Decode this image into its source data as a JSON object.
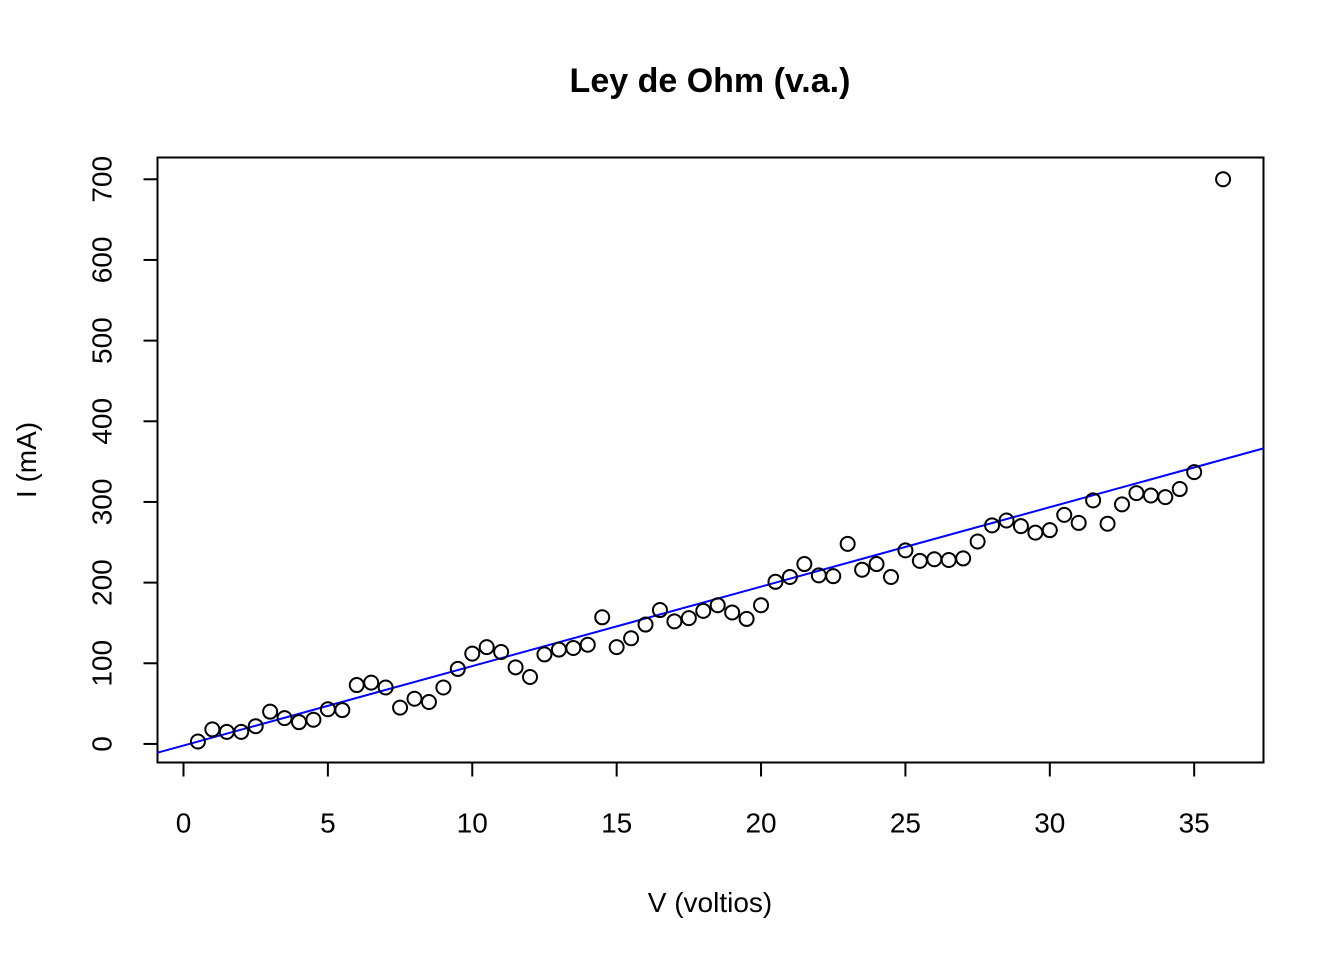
{
  "chart_data": {
    "type": "scatter",
    "title": "Ley de Ohm (v.a.)",
    "xlabel": "V (voltios)",
    "ylabel": "I (mA)",
    "xlim": [
      -0.9,
      37.4
    ],
    "ylim": [
      -23,
      727
    ],
    "xticks": [
      0,
      5,
      10,
      15,
      20,
      25,
      30,
      35
    ],
    "yticks": [
      0,
      100,
      200,
      300,
      400,
      500,
      600,
      700
    ],
    "grid": false,
    "legend": "none",
    "colors": {
      "points": "#000000",
      "fit_line": "#0000ff"
    },
    "series": [
      {
        "marker": "open-circle",
        "points": [
          [
            0.5,
            3
          ],
          [
            1.0,
            18
          ],
          [
            1.5,
            15
          ],
          [
            2.0,
            15
          ],
          [
            2.5,
            22
          ],
          [
            3.0,
            40
          ],
          [
            3.5,
            32
          ],
          [
            4.0,
            27
          ],
          [
            4.5,
            30
          ],
          [
            5.0,
            43
          ],
          [
            5.5,
            42
          ],
          [
            6.0,
            73
          ],
          [
            6.5,
            76
          ],
          [
            7.0,
            70
          ],
          [
            7.5,
            45
          ],
          [
            8.0,
            56
          ],
          [
            8.5,
            52
          ],
          [
            9.0,
            70
          ],
          [
            9.5,
            93
          ],
          [
            10.0,
            112
          ],
          [
            10.5,
            120
          ],
          [
            11.0,
            114
          ],
          [
            11.5,
            95
          ],
          [
            12.0,
            83
          ],
          [
            12.5,
            111
          ],
          [
            13.0,
            117
          ],
          [
            13.5,
            119
          ],
          [
            14.0,
            123
          ],
          [
            14.5,
            157
          ],
          [
            15.0,
            120
          ],
          [
            15.5,
            131
          ],
          [
            16.0,
            148
          ],
          [
            16.5,
            166
          ],
          [
            17.0,
            152
          ],
          [
            17.5,
            156
          ],
          [
            18.0,
            165
          ],
          [
            18.5,
            172
          ],
          [
            19.0,
            163
          ],
          [
            19.5,
            155
          ],
          [
            20.0,
            172
          ],
          [
            20.5,
            201
          ],
          [
            21.0,
            207
          ],
          [
            21.5,
            223
          ],
          [
            22.0,
            209
          ],
          [
            22.5,
            208
          ],
          [
            23.0,
            248
          ],
          [
            23.5,
            216
          ],
          [
            24.0,
            223
          ],
          [
            24.5,
            207
          ],
          [
            25.0,
            240
          ],
          [
            25.5,
            227
          ],
          [
            26.0,
            229
          ],
          [
            26.5,
            228
          ],
          [
            27.0,
            230
          ],
          [
            27.5,
            251
          ],
          [
            28.0,
            271
          ],
          [
            28.5,
            277
          ],
          [
            29.0,
            270
          ],
          [
            29.5,
            262
          ],
          [
            30.0,
            265
          ],
          [
            30.5,
            284
          ],
          [
            31.0,
            274
          ],
          [
            31.5,
            302
          ],
          [
            32.0,
            273
          ],
          [
            32.5,
            297
          ],
          [
            33.0,
            311
          ],
          [
            33.5,
            308
          ],
          [
            34.0,
            306
          ],
          [
            34.5,
            316
          ],
          [
            35.0,
            337
          ],
          [
            36.0,
            700
          ]
        ]
      }
    ],
    "fit_line": {
      "intercept": -2,
      "slope": 9.85
    }
  }
}
